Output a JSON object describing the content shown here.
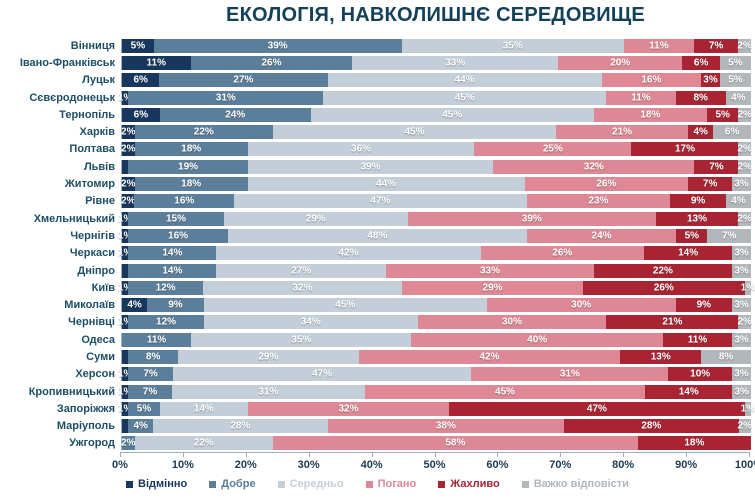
{
  "title": "ЕКОЛОГІЯ, НАВКОЛИШНЄ СЕРЕДОВИЩЕ",
  "chart_data": {
    "type": "bar",
    "stacked": true,
    "orientation": "horizontal",
    "title": "ЕКОЛОГІЯ, НАВКОЛИШНЄ СЕРЕДОВИЩЕ",
    "xlabel": "",
    "ylabel": "",
    "xlim": [
      0,
      100
    ],
    "x_ticks": [
      "0%",
      "10%",
      "20%",
      "30%",
      "40%",
      "50%",
      "60%",
      "70%",
      "80%",
      "90%",
      "100%"
    ],
    "grid": false,
    "legend_position": "bottom",
    "series": [
      {
        "name": "Відмінно",
        "color": "#17375e"
      },
      {
        "name": "Добре",
        "color": "#5b7e9a"
      },
      {
        "name": "Середньо",
        "color": "#c3ced9"
      },
      {
        "name": "Погано",
        "color": "#dd8894"
      },
      {
        "name": "Жахливо",
        "color": "#a82433"
      },
      {
        "name": "Важко відповісти",
        "color": "#b2b7bc"
      }
    ],
    "rows": [
      {
        "city": "Вінниця",
        "values": [
          5,
          39,
          35,
          11,
          7,
          2
        ],
        "labels": [
          "5%",
          "39%",
          "35%",
          "11%",
          "7%",
          "2%"
        ]
      },
      {
        "city": "Івано-Франківськ",
        "values": [
          11,
          26,
          33,
          20,
          6,
          5
        ],
        "labels": [
          "11%",
          "26%",
          "33%",
          "20%",
          "6%",
          "5%"
        ]
      },
      {
        "city": "Луцьк",
        "values": [
          6,
          27,
          44,
          16,
          3,
          5
        ],
        "labels": [
          "6%",
          "27%",
          "44%",
          "16%",
          "3%",
          "5%"
        ]
      },
      {
        "city": "Сєвєродонецьк",
        "values": [
          1,
          31,
          45,
          11,
          8,
          4
        ],
        "labels": [
          "1%",
          "31%",
          "45%",
          "11%",
          "8%",
          "4%"
        ]
      },
      {
        "city": "Тернопіль",
        "values": [
          6,
          24,
          45,
          18,
          5,
          2
        ],
        "labels": [
          "6%",
          "24%",
          "45%",
          "18%",
          "5%",
          "2%"
        ]
      },
      {
        "city": "Харків",
        "values": [
          2,
          22,
          45,
          21,
          4,
          6
        ],
        "labels": [
          "2%",
          "22%",
          "45%",
          "21%",
          "4%",
          "6%"
        ]
      },
      {
        "city": "Полтава",
        "values": [
          2,
          18,
          36,
          25,
          17,
          2
        ],
        "labels": [
          "2%",
          "18%",
          "36%",
          "25%",
          "17%",
          "2%"
        ]
      },
      {
        "city": "Львів",
        "values": [
          1,
          19,
          39,
          32,
          7,
          2
        ],
        "labels": [
          "",
          "19%",
          "39%",
          "32%",
          "7%",
          "2%"
        ]
      },
      {
        "city": "Житомир",
        "values": [
          2,
          18,
          44,
          26,
          7,
          3
        ],
        "labels": [
          "2%",
          "18%",
          "44%",
          "26%",
          "7%",
          "3%"
        ]
      },
      {
        "city": "Рівне",
        "values": [
          2,
          16,
          47,
          23,
          9,
          4
        ],
        "labels": [
          "2%",
          "16%",
          "47%",
          "23%",
          "9%",
          "4%"
        ]
      },
      {
        "city": "Хмельницький",
        "values": [
          1,
          15,
          29,
          39,
          13,
          2
        ],
        "labels": [
          "1%",
          "15%",
          "29%",
          "39%",
          "13%",
          "2%"
        ]
      },
      {
        "city": "Чернігів",
        "values": [
          1,
          16,
          48,
          24,
          5,
          7
        ],
        "labels": [
          "1%",
          "16%",
          "48%",
          "24%",
          "5%",
          "7%"
        ]
      },
      {
        "city": "Черкаси",
        "values": [
          1,
          14,
          42,
          26,
          14,
          3
        ],
        "labels": [
          "1%",
          "14%",
          "42%",
          "26%",
          "14%",
          "3%"
        ]
      },
      {
        "city": "Дніпро",
        "values": [
          1,
          14,
          27,
          33,
          22,
          3
        ],
        "labels": [
          "",
          "14%",
          "27%",
          "33%",
          "22%",
          "3%"
        ]
      },
      {
        "city": "Київ",
        "values": [
          1,
          12,
          32,
          29,
          26,
          1
        ],
        "labels": [
          "1%",
          "12%",
          "32%",
          "29%",
          "26%",
          "1%"
        ]
      },
      {
        "city": "Миколаїв",
        "values": [
          4,
          9,
          45,
          30,
          9,
          3
        ],
        "labels": [
          "4%",
          "9%",
          "45%",
          "30%",
          "9%",
          "3%"
        ]
      },
      {
        "city": "Чернівці",
        "values": [
          1,
          12,
          34,
          30,
          21,
          2
        ],
        "labels": [
          "1%",
          "12%",
          "34%",
          "30%",
          "21%",
          "2%"
        ]
      },
      {
        "city": "Одеса",
        "values": [
          0,
          11,
          35,
          40,
          11,
          3
        ],
        "labels": [
          "",
          "11%",
          "35%",
          "40%",
          "11%",
          "3%"
        ]
      },
      {
        "city": "Суми",
        "values": [
          1,
          8,
          29,
          42,
          13,
          8
        ],
        "labels": [
          "",
          "8%",
          "29%",
          "42%",
          "13%",
          "8%"
        ]
      },
      {
        "city": "Херсон",
        "values": [
          1,
          7,
          47,
          31,
          10,
          3
        ],
        "labels": [
          "1%",
          "7%",
          "47%",
          "31%",
          "10%",
          "3%"
        ]
      },
      {
        "city": "Кропивницький",
        "values": [
          1,
          7,
          31,
          45,
          14,
          3
        ],
        "labels": [
          "1%",
          "7%",
          "31%",
          "45%",
          "14%",
          "3%"
        ]
      },
      {
        "city": "Запоріжжя",
        "values": [
          1,
          5,
          14,
          32,
          47,
          1
        ],
        "labels": [
          "1%",
          "5%",
          "14%",
          "32%",
          "47%",
          "1%"
        ]
      },
      {
        "city": "Маріуполь",
        "values": [
          1,
          4,
          28,
          38,
          28,
          2
        ],
        "labels": [
          "",
          "4%",
          "28%",
          "38%",
          "28%",
          "2%"
        ]
      },
      {
        "city": "Ужгород",
        "values": [
          0,
          2,
          22,
          58,
          18,
          0
        ],
        "labels": [
          "",
          "2%",
          "22%",
          "58%",
          "18%",
          ""
        ]
      }
    ]
  }
}
